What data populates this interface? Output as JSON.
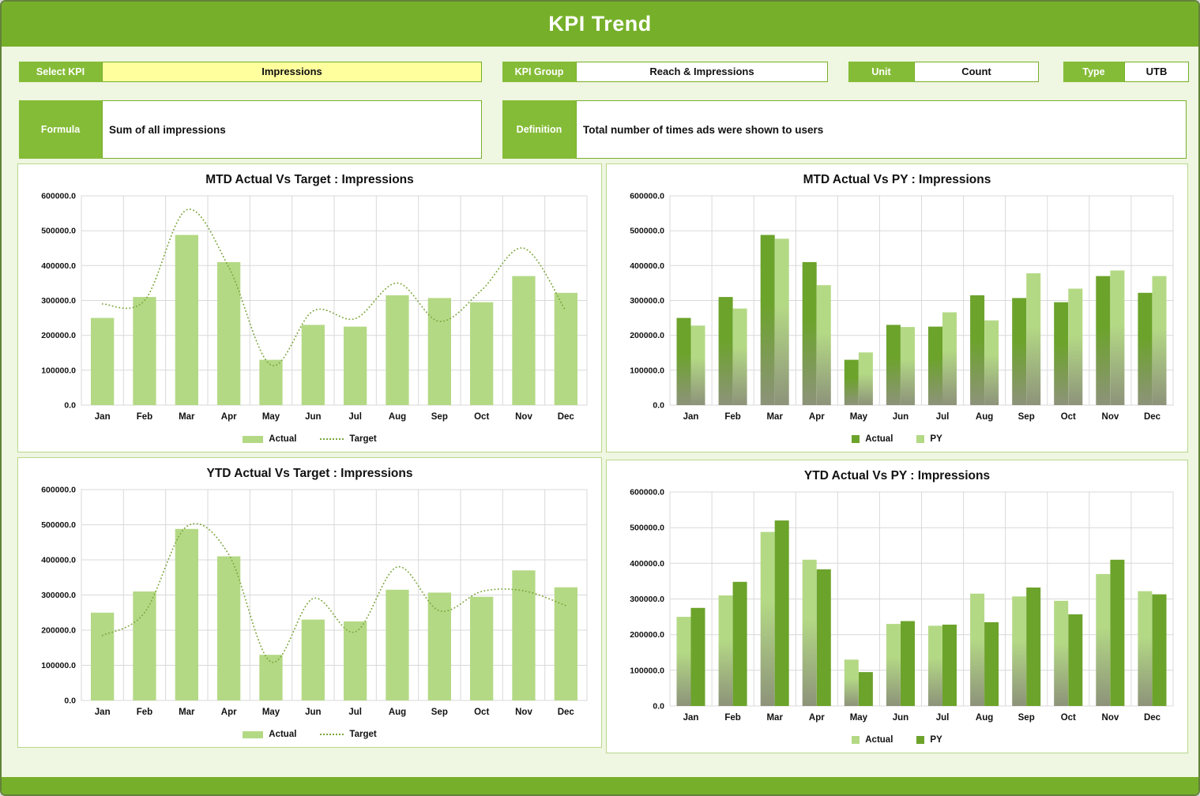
{
  "header": {
    "title": "KPI Trend"
  },
  "controls": {
    "select_kpi": {
      "label": "Select KPI",
      "value": "Impressions"
    },
    "kpi_group": {
      "label": "KPI Group",
      "value": "Reach & Impressions"
    },
    "unit": {
      "label": "Unit",
      "value": "Count"
    },
    "type": {
      "label": "Type",
      "value": "UTB"
    },
    "formula": {
      "label": "Formula",
      "value": "Sum of all impressions"
    },
    "definition": {
      "label": "Definition",
      "value": "Total number of times ads were shown to users"
    }
  },
  "colors": {
    "header_green": "#76b02a",
    "label_green": "#85bc37",
    "field_yellow": "#ffff9e",
    "bar_light_green": "#b4d985",
    "bar_dark_green": "#6ca32b",
    "target_line_green": "#7ca63c",
    "gradient_fade_gray": "#8d937a",
    "grid_gray": "#d9d9d9"
  },
  "chart_data": [
    {
      "type": "bar+line",
      "title": "MTD Actual Vs Target : Impressions",
      "categories": [
        "Jan",
        "Feb",
        "Mar",
        "Apr",
        "May",
        "Jun",
        "Jul",
        "Aug",
        "Sep",
        "Oct",
        "Nov",
        "Dec"
      ],
      "ylim": [
        0,
        600000
      ],
      "ytick_step": 100000,
      "legend_position": "bottom",
      "series": [
        {
          "name": "Actual",
          "type": "bar",
          "color": "#b4d985",
          "gradient": false,
          "values": [
            250000,
            310000,
            488000,
            410000,
            130000,
            230000,
            225000,
            315000,
            307000,
            295000,
            370000,
            322000
          ]
        },
        {
          "name": "Target",
          "type": "line",
          "style": "dotted",
          "color": "#7ca63c",
          "values": [
            290000,
            300000,
            560000,
            395000,
            115000,
            270000,
            248000,
            350000,
            240000,
            330000,
            450000,
            270000
          ]
        }
      ]
    },
    {
      "type": "bar",
      "title": "MTD Actual Vs PY : Impressions",
      "categories": [
        "Jan",
        "Feb",
        "Mar",
        "Apr",
        "May",
        "Jun",
        "Jul",
        "Aug",
        "Sep",
        "Oct",
        "Nov",
        "Dec"
      ],
      "ylim": [
        0,
        600000
      ],
      "ytick_step": 100000,
      "legend_position": "bottom",
      "series": [
        {
          "name": "Actual",
          "type": "bar",
          "color": "#6ca32b",
          "gradient": true,
          "values": [
            250000,
            310000,
            488000,
            410000,
            130000,
            230000,
            225000,
            315000,
            307000,
            295000,
            370000,
            322000
          ]
        },
        {
          "name": "PY",
          "type": "bar",
          "color": "#b4d985",
          "gradient": true,
          "values": [
            228000,
            277000,
            477000,
            344000,
            151000,
            224000,
            266000,
            243000,
            378000,
            334000,
            386000,
            370000
          ]
        }
      ]
    },
    {
      "type": "bar+line",
      "title": "YTD Actual Vs Target : Impressions",
      "categories": [
        "Jan",
        "Feb",
        "Mar",
        "Apr",
        "May",
        "Jun",
        "Jul",
        "Aug",
        "Sep",
        "Oct",
        "Nov",
        "Dec"
      ],
      "ylim": [
        0,
        600000
      ],
      "ytick_step": 100000,
      "legend_position": "bottom",
      "series": [
        {
          "name": "Actual",
          "type": "bar",
          "color": "#b4d985",
          "gradient": false,
          "values": [
            250000,
            310000,
            488000,
            410000,
            130000,
            230000,
            225000,
            315000,
            307000,
            295000,
            370000,
            322000
          ]
        },
        {
          "name": "Target",
          "type": "line",
          "style": "dotted",
          "color": "#7ca63c",
          "values": [
            185000,
            250000,
            495000,
            415000,
            110000,
            290000,
            195000,
            380000,
            255000,
            310000,
            312000,
            270000
          ]
        }
      ]
    },
    {
      "type": "bar",
      "title": "YTD Actual Vs PY : Impressions",
      "categories": [
        "Jan",
        "Feb",
        "Mar",
        "Apr",
        "May",
        "Jun",
        "Jul",
        "Aug",
        "Sep",
        "Oct",
        "Nov",
        "Dec"
      ],
      "ylim": [
        0,
        600000
      ],
      "ytick_step": 100000,
      "legend_position": "bottom",
      "series": [
        {
          "name": "Actual",
          "type": "bar",
          "color": "#b4d985",
          "gradient": true,
          "values": [
            250000,
            310000,
            488000,
            410000,
            130000,
            230000,
            225000,
            315000,
            307000,
            295000,
            370000,
            322000
          ]
        },
        {
          "name": "PY",
          "type": "bar",
          "color": "#6ca32b",
          "gradient": false,
          "values": [
            275000,
            348000,
            520000,
            383000,
            95000,
            238000,
            228000,
            235000,
            332000,
            257000,
            410000,
            313000
          ]
        }
      ]
    }
  ]
}
